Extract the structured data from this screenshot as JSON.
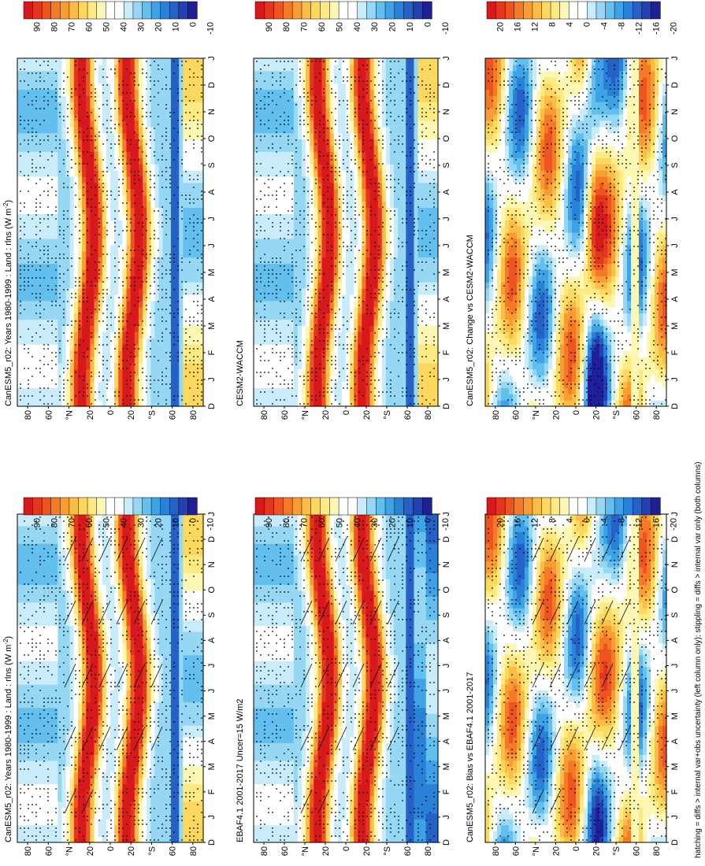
{
  "figure": {
    "footnote": "hatching = diffs > internal var+obs uncertainty (left column only); stippling = diffs > internal var only (both columns)"
  },
  "chart_data": [
    {
      "type": "heatmap",
      "id": "p1",
      "title": "CanESM5_r02: Years 1980-1999 : Land : rlns (W m",
      "title_sup": "-2",
      "title_end": ")",
      "x_ticks": [
        "D",
        "J",
        "F",
        "M",
        "A",
        "M",
        "J",
        "J",
        "A",
        "S",
        "O",
        "N",
        "D",
        "J"
      ],
      "y_ticks": [
        "80",
        "60",
        "°N",
        "20",
        "0",
        "20",
        "°S",
        "60",
        "80"
      ],
      "colorbar_labels": [
        "90",
        "80",
        "70",
        "60",
        "50",
        "40",
        "30",
        "20",
        "10",
        "0",
        "-10"
      ],
      "field": "clim_model",
      "hatching": true,
      "stippling": true
    },
    {
      "type": "heatmap",
      "id": "p2",
      "title": "CanESM5_r02: Years 1980-1999 : Land : rlns (W m",
      "title_sup": "-2",
      "title_end": ")",
      "x_ticks": [
        "D",
        "J",
        "F",
        "M",
        "A",
        "M",
        "J",
        "J",
        "A",
        "S",
        "O",
        "N",
        "D",
        "J"
      ],
      "y_ticks": [
        "80",
        "60",
        "°N",
        "20",
        "0",
        "20",
        "°S",
        "60",
        "80"
      ],
      "colorbar_labels": [
        "90",
        "80",
        "70",
        "60",
        "50",
        "40",
        "30",
        "20",
        "10",
        "0",
        "-10"
      ],
      "field": "clim_model",
      "hatching": false,
      "stippling": true
    },
    {
      "type": "heatmap",
      "id": "p3",
      "title": "EBAF4.1 2001-2017 Uncer=15 W/m2",
      "x_ticks": [
        "D",
        "J",
        "F",
        "M",
        "A",
        "M",
        "J",
        "J",
        "A",
        "S",
        "O",
        "N",
        "D",
        "J"
      ],
      "y_ticks": [
        "80",
        "60",
        "°N",
        "20",
        "0",
        "20",
        "°S",
        "60",
        "80"
      ],
      "colorbar_labels": [
        "90",
        "80",
        "70",
        "60",
        "50",
        "40",
        "30",
        "20",
        "10",
        "0",
        "-10"
      ],
      "field": "clim_obs",
      "hatching": true,
      "stippling": true
    },
    {
      "type": "heatmap",
      "id": "p4",
      "title": "CESM2-WACCM",
      "x_ticks": [
        "D",
        "J",
        "F",
        "M",
        "A",
        "M",
        "J",
        "J",
        "A",
        "S",
        "O",
        "N",
        "D",
        "J"
      ],
      "y_ticks": [
        "80",
        "60",
        "°N",
        "20",
        "0",
        "20",
        "°S",
        "60",
        "80"
      ],
      "colorbar_labels": [
        "90",
        "80",
        "70",
        "60",
        "50",
        "40",
        "30",
        "20",
        "10",
        "0",
        "-10"
      ],
      "field": "clim_ref",
      "hatching": false,
      "stippling": true
    },
    {
      "type": "heatmap",
      "id": "p5",
      "title": "CanESM5_r02: Bias vs EBAF4.1 2001-2017",
      "x_ticks": [
        "D",
        "J",
        "F",
        "M",
        "A",
        "M",
        "J",
        "J",
        "A",
        "S",
        "O",
        "N",
        "D",
        "J"
      ],
      "y_ticks": [
        "80",
        "60",
        "°N",
        "20",
        "0",
        "20",
        "°S",
        "60",
        "80"
      ],
      "colorbar_labels": [
        "20",
        "16",
        "12",
        "8",
        "4",
        "0",
        "-4",
        "-8",
        "-12",
        "-16",
        "-20"
      ],
      "field": "bias",
      "hatching": true,
      "stippling": true
    },
    {
      "type": "heatmap",
      "id": "p6",
      "title": "CanESM5_r02: Change vs CESM2-WACCM",
      "x_ticks": [
        "D",
        "J",
        "F",
        "M",
        "A",
        "M",
        "J",
        "J",
        "A",
        "S",
        "O",
        "N",
        "D",
        "J"
      ],
      "y_ticks": [
        "80",
        "60",
        "°N",
        "20",
        "0",
        "20",
        "°S",
        "60",
        "80"
      ],
      "colorbar_labels": [
        "20",
        "16",
        "12",
        "8",
        "4",
        "0",
        "-4",
        "-8",
        "-12",
        "-16",
        "-20"
      ],
      "field": "change",
      "hatching": false,
      "stippling": true
    }
  ],
  "colors": {
    "palette": [
      "#d7191c",
      "#e3361e",
      "#ee5420",
      "#f57a26",
      "#f99d32",
      "#fbbd45",
      "#fdd85e",
      "#fdea82",
      "#fdf7b4",
      "#ffffff",
      "#ffffff",
      "#c8ecfa",
      "#96d8f4",
      "#63c0ee",
      "#3ea3e6",
      "#2a82d8",
      "#2561c6",
      "#2340b2",
      "#1f1f9a"
    ],
    "hatch": "#000000",
    "stipple": "#000000"
  }
}
